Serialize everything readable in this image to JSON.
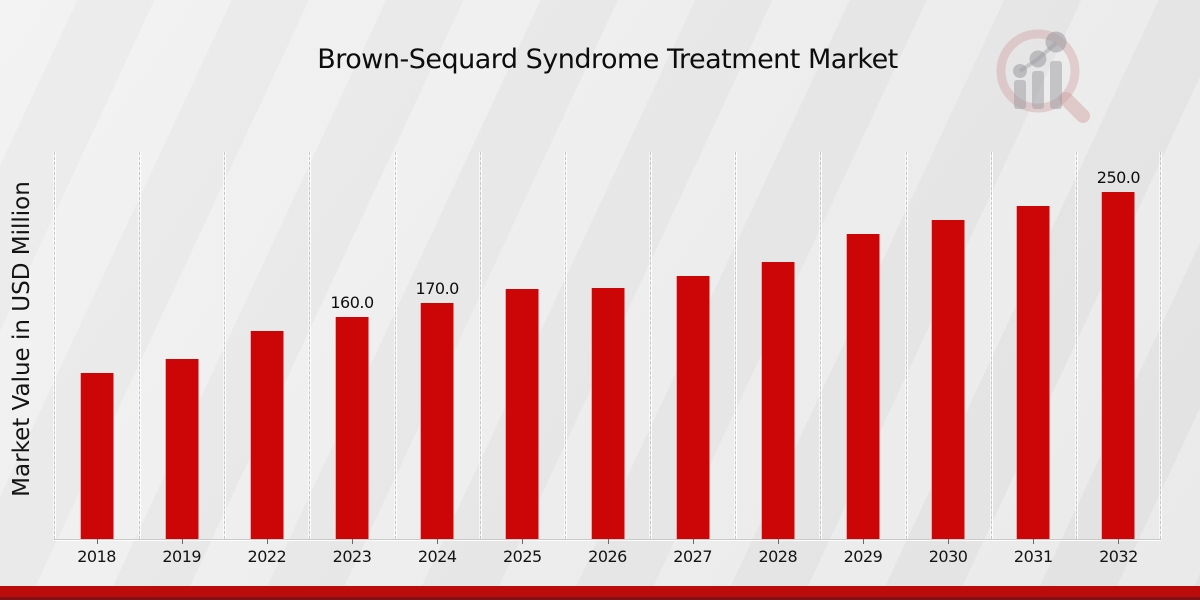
{
  "chart_data": {
    "type": "bar",
    "title": "Brown-Sequard Syndrome Treatment Market",
    "ylabel": "Market Value in USD Million",
    "xlabel": "",
    "categories": [
      "2018",
      "2019",
      "2022",
      "2023",
      "2024",
      "2025",
      "2026",
      "2027",
      "2028",
      "2029",
      "2030",
      "2031",
      "2032"
    ],
    "values": [
      120,
      130,
      150,
      160,
      170,
      180,
      181,
      190,
      200,
      220,
      230,
      240,
      250
    ],
    "data_labels": {
      "2023": "160.0",
      "2024": "170.0",
      "2032": "250.0"
    },
    "unit": "USD Million",
    "ylim": [
      0,
      280
    ],
    "bar_color": "#cc0606",
    "grid": "vertical-dashed-between-categories",
    "legend_position": "none"
  },
  "branding": {
    "logo_icon": "magnifier-growth-chart-logo",
    "logo_ring_color": "#cf9d9d",
    "logo_bar_color": "#9b9ba1",
    "footer_band_color": "#bb0b0b",
    "footer_edge_color": "#7d1113"
  }
}
